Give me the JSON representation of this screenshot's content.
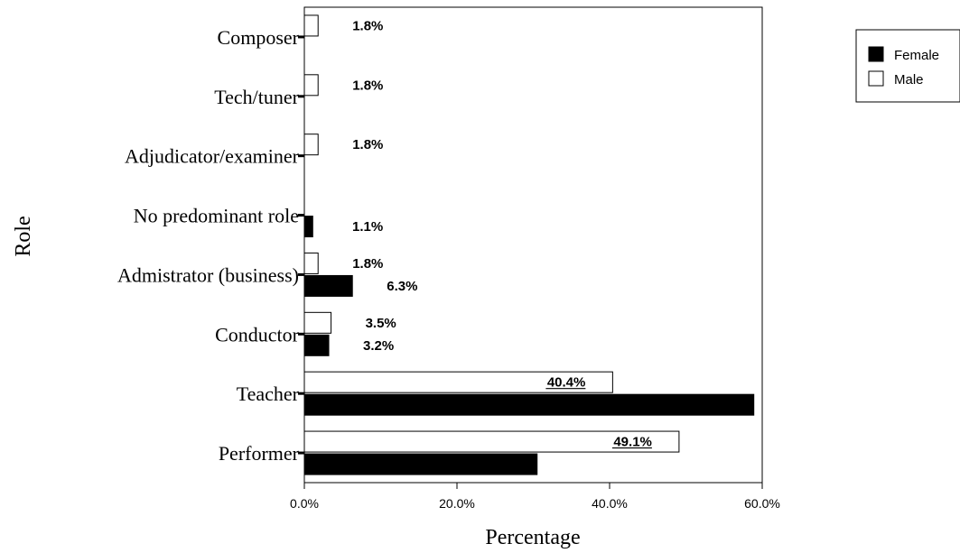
{
  "chart_data": {
    "type": "bar",
    "orientation": "horizontal",
    "xlabel": "Percentage",
    "ylabel": "Role",
    "xlim": [
      0,
      60
    ],
    "x_ticks": [
      "0.0%",
      "20.0%",
      "40.0%",
      "60.0%"
    ],
    "categories": [
      "Composer",
      "Tech/tuner",
      "Adjudicator/examiner",
      "No predominant role",
      "Admistrator (business)",
      "Conductor",
      "Teacher",
      "Performer"
    ],
    "series": [
      {
        "name": "Male",
        "color": "#ffffff",
        "values": [
          1.8,
          1.8,
          1.8,
          null,
          1.8,
          3.5,
          40.4,
          49.1
        ],
        "labels": [
          "1.8%",
          "1.8%",
          "1.8%",
          "",
          "1.8%",
          "3.5%",
          "40.4%",
          "49.1%"
        ]
      },
      {
        "name": "Female",
        "color": "#000000",
        "values": [
          null,
          null,
          null,
          1.1,
          6.3,
          3.2,
          58.9,
          30.5
        ],
        "labels": [
          "",
          "",
          "",
          "1.1%",
          "6.3%",
          "3.2%",
          "",
          ""
        ]
      }
    ],
    "legend": {
      "position": "top-right",
      "entries": [
        "Female",
        "Male"
      ]
    },
    "grid": false
  }
}
